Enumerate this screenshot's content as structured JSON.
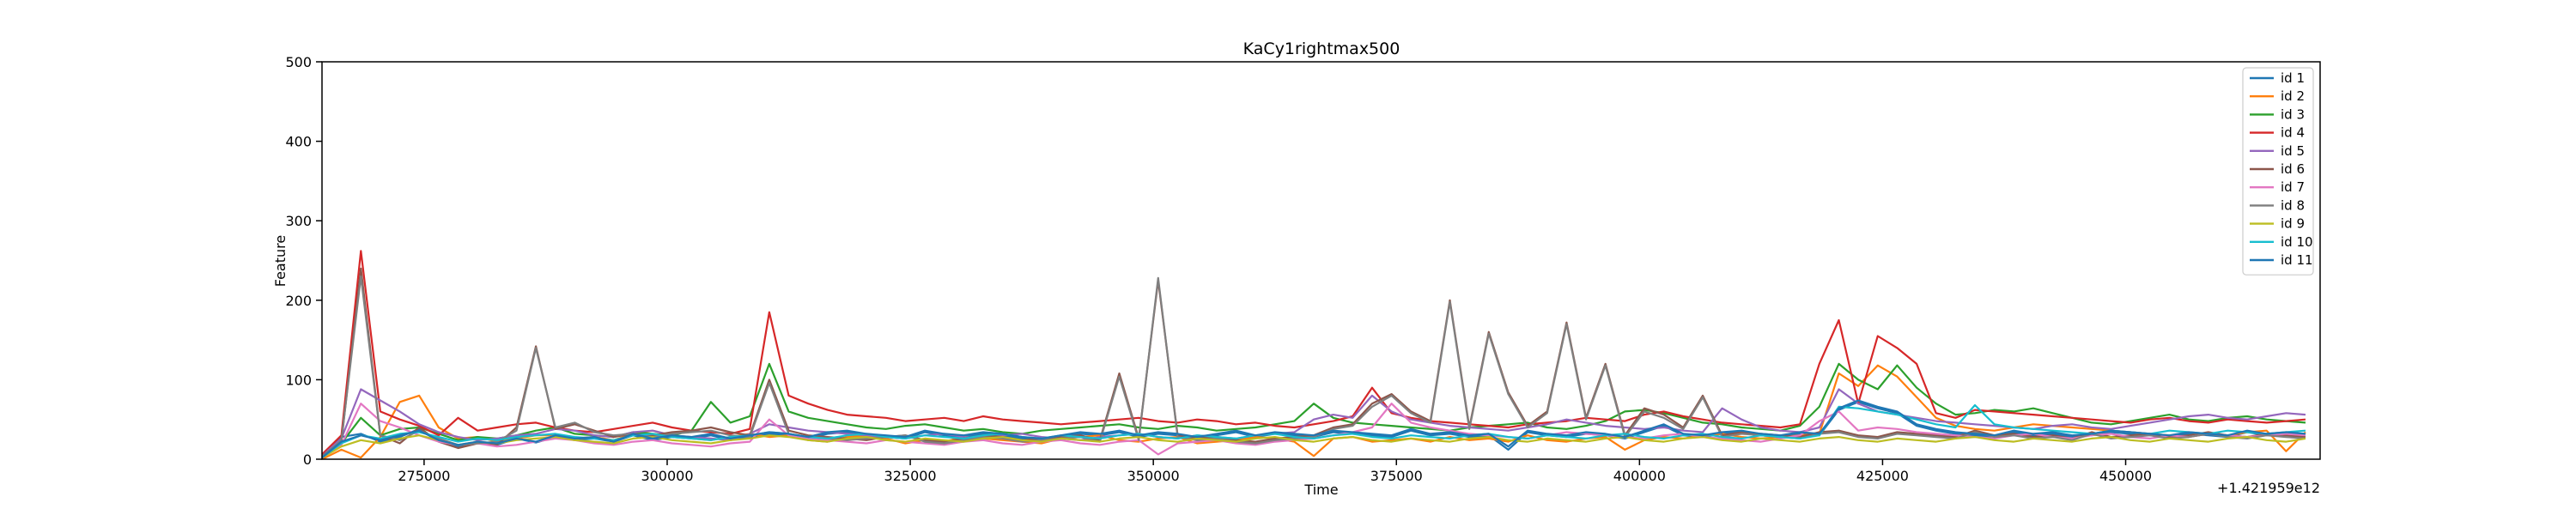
{
  "chart_data": {
    "type": "line",
    "title": "KaCy1rightmax500",
    "xlabel": "Time",
    "ylabel": "Feature",
    "x_offset_label": "+1.421959e12",
    "xlim": [
      264500,
      470000
    ],
    "ylim": [
      0,
      500
    ],
    "xticks": [
      275000,
      300000,
      325000,
      350000,
      375000,
      400000,
      425000,
      450000
    ],
    "xtick_labels": [
      "275000",
      "300000",
      "325000",
      "350000",
      "375000",
      "400000",
      "425000",
      "450000"
    ],
    "yticks": [
      0,
      100,
      200,
      300,
      400,
      500
    ],
    "ytick_labels": [
      "0",
      "100",
      "200",
      "300",
      "400",
      "500"
    ],
    "grid": false,
    "legend_position": "top-right",
    "x": [
      264500,
      266500,
      268500,
      270500,
      272500,
      274500,
      276500,
      278500,
      280500,
      282500,
      284500,
      286500,
      288500,
      290500,
      292500,
      294500,
      296500,
      298500,
      300500,
      302500,
      304500,
      306500,
      308500,
      310500,
      312500,
      314500,
      316500,
      318500,
      320500,
      322500,
      324500,
      326500,
      328500,
      330500,
      332500,
      334500,
      336500,
      338500,
      340500,
      342500,
      344500,
      346500,
      348500,
      350500,
      352500,
      354500,
      356500,
      358500,
      360500,
      362500,
      364500,
      366500,
      368500,
      370500,
      372500,
      374500,
      376500,
      378500,
      380500,
      382500,
      384500,
      386500,
      388500,
      390500,
      392500,
      394500,
      396500,
      398500,
      400500,
      402500,
      404500,
      406500,
      408500,
      410500,
      412500,
      414500,
      416500,
      418500,
      420500,
      422500,
      424500,
      426500,
      428500,
      430500,
      432500,
      434500,
      436500,
      438500,
      440500,
      442500,
      444500,
      446500,
      448500,
      450500,
      452500,
      454500,
      456500,
      458500,
      460500,
      462500,
      464500,
      466500,
      468500
    ],
    "series": [
      {
        "name": "id 1",
        "color": "#1f77b4",
        "values": [
          2,
          28,
          32,
          22,
          28,
          38,
          22,
          16,
          22,
          18,
          26,
          21,
          28,
          24,
          26,
          22,
          30,
          24,
          28,
          26,
          30,
          24,
          28,
          32,
          30,
          26,
          32,
          34,
          30,
          28,
          26,
          34,
          30,
          28,
          32,
          30,
          26,
          24,
          28,
          32,
          30,
          34,
          28,
          32,
          30,
          26,
          30,
          34,
          28,
          32,
          30,
          28,
          34,
          32,
          30,
          28,
          36,
          30,
          32,
          28,
          30,
          12,
          34,
          30,
          28,
          32,
          30,
          26,
          34,
          42,
          30,
          28,
          32,
          34,
          30,
          28,
          32,
          30,
          62,
          72,
          64,
          58,
          42,
          36,
          32,
          30,
          28,
          34,
          30,
          32,
          28,
          30,
          34,
          32,
          30,
          28,
          32,
          30,
          28,
          34,
          30,
          32,
          30
        ]
      },
      {
        "name": "id 2",
        "color": "#ff7f0e",
        "values": [
          0,
          12,
          2,
          28,
          72,
          80,
          40,
          26,
          28,
          22,
          26,
          30,
          30,
          26,
          28,
          24,
          32,
          36,
          30,
          26,
          24,
          28,
          32,
          28,
          30,
          24,
          22,
          28,
          30,
          26,
          20,
          24,
          22,
          28,
          26,
          24,
          22,
          20,
          26,
          28,
          30,
          24,
          22,
          26,
          28,
          20,
          22,
          24,
          28,
          26,
          22,
          4,
          26,
          28,
          22,
          24,
          26,
          22,
          28,
          24,
          26,
          22,
          30,
          24,
          22,
          26,
          28,
          12,
          24,
          28,
          26,
          30,
          32,
          28,
          26,
          28,
          30,
          32,
          108,
          92,
          118,
          104,
          78,
          52,
          42,
          38,
          36,
          40,
          44,
          42,
          40,
          38,
          36,
          34,
          32,
          30,
          28,
          32,
          30,
          34,
          36,
          10,
          34
        ]
      },
      {
        "name": "id 3",
        "color": "#2ca02c",
        "values": [
          4,
          20,
          52,
          30,
          38,
          40,
          32,
          24,
          28,
          26,
          30,
          36,
          40,
          32,
          30,
          28,
          34,
          32,
          30,
          36,
          72,
          46,
          54,
          120,
          60,
          52,
          48,
          44,
          40,
          38,
          42,
          44,
          40,
          36,
          38,
          34,
          32,
          36,
          38,
          40,
          42,
          44,
          40,
          38,
          42,
          40,
          36,
          38,
          40,
          44,
          48,
          70,
          52,
          46,
          44,
          42,
          40,
          38,
          36,
          40,
          42,
          44,
          46,
          40,
          38,
          42,
          48,
          60,
          62,
          58,
          52,
          46,
          44,
          40,
          38,
          36,
          42,
          66,
          120,
          100,
          88,
          118,
          90,
          70,
          56,
          58,
          62,
          60,
          64,
          58,
          52,
          46,
          44,
          48,
          52,
          56,
          50,
          48,
          52,
          54,
          50,
          48,
          46
        ]
      },
      {
        "name": "id 4",
        "color": "#d62728",
        "values": [
          6,
          30,
          262,
          60,
          50,
          42,
          30,
          52,
          36,
          40,
          44,
          46,
          40,
          36,
          34,
          38,
          42,
          46,
          40,
          36,
          34,
          32,
          38,
          185,
          80,
          70,
          62,
          56,
          54,
          52,
          48,
          50,
          52,
          48,
          54,
          50,
          48,
          46,
          44,
          46,
          48,
          50,
          52,
          48,
          46,
          50,
          48,
          44,
          46,
          42,
          40,
          44,
          48,
          54,
          90,
          58,
          52,
          48,
          46,
          44,
          42,
          40,
          44,
          46,
          48,
          52,
          50,
          48,
          56,
          60,
          54,
          50,
          46,
          44,
          42,
          40,
          44,
          120,
          175,
          70,
          155,
          140,
          120,
          58,
          52,
          62,
          60,
          58,
          56,
          54,
          52,
          50,
          48,
          46,
          50,
          52,
          48,
          46,
          50,
          48,
          46,
          48,
          50
        ]
      },
      {
        "name": "id 5",
        "color": "#9467bd",
        "values": [
          4,
          26,
          88,
          74,
          60,
          44,
          34,
          28,
          24,
          26,
          30,
          32,
          38,
          36,
          30,
          28,
          34,
          36,
          30,
          28,
          26,
          24,
          32,
          44,
          40,
          36,
          34,
          32,
          30,
          28,
          26,
          30,
          32,
          28,
          26,
          30,
          32,
          28,
          26,
          24,
          28,
          30,
          32,
          28,
          26,
          30,
          28,
          26,
          30,
          32,
          34,
          50,
          56,
          52,
          80,
          60,
          50,
          46,
          42,
          40,
          38,
          36,
          40,
          44,
          50,
          46,
          42,
          40,
          38,
          40,
          36,
          34,
          64,
          50,
          40,
          36,
          34,
          40,
          88,
          70,
          60,
          56,
          52,
          48,
          46,
          44,
          42,
          40,
          38,
          42,
          44,
          40,
          38,
          42,
          46,
          50,
          54,
          56,
          52,
          50,
          54,
          58,
          56
        ]
      },
      {
        "name": "id 6",
        "color": "#8c564b",
        "values": [
          4,
          22,
          240,
          30,
          20,
          40,
          22,
          14,
          20,
          18,
          40,
          142,
          38,
          44,
          36,
          28,
          32,
          30,
          34,
          36,
          40,
          34,
          30,
          100,
          36,
          30,
          28,
          26,
          24,
          28,
          30,
          24,
          22,
          26,
          30,
          28,
          24,
          26,
          28,
          30,
          24,
          108,
          26,
          225,
          30,
          26,
          28,
          24,
          22,
          26,
          28,
          30,
          40,
          44,
          70,
          82,
          60,
          48,
          200,
          40,
          160,
          84,
          42,
          60,
          172,
          52,
          120,
          30,
          64,
          56,
          40,
          80,
          30,
          34,
          32,
          30,
          28,
          34,
          36,
          30,
          28,
          34,
          32,
          30,
          28,
          36,
          30,
          32,
          28,
          30,
          26,
          34,
          28,
          30,
          32,
          28,
          30,
          34,
          30,
          28,
          32,
          30,
          28
        ]
      },
      {
        "name": "id 7",
        "color": "#e377c2",
        "values": [
          2,
          18,
          70,
          48,
          40,
          30,
          22,
          18,
          20,
          16,
          18,
          22,
          26,
          24,
          20,
          18,
          22,
          24,
          20,
          18,
          16,
          20,
          22,
          50,
          30,
          26,
          24,
          22,
          20,
          24,
          22,
          20,
          18,
          22,
          24,
          20,
          18,
          22,
          24,
          20,
          18,
          22,
          24,
          6,
          20,
          22,
          24,
          20,
          18,
          22,
          24,
          26,
          30,
          34,
          40,
          70,
          46,
          40,
          36,
          32,
          30,
          28,
          26,
          30,
          34,
          32,
          30,
          28,
          26,
          30,
          32,
          28,
          26,
          24,
          22,
          26,
          30,
          48,
          60,
          36,
          40,
          38,
          34,
          32,
          30,
          28,
          26,
          30,
          32,
          28,
          26,
          30,
          32,
          28,
          26,
          30,
          28,
          32,
          30,
          28,
          30,
          32,
          30
        ]
      },
      {
        "name": "id 8",
        "color": "#7f7f7f",
        "values": [
          3,
          24,
          230,
          30,
          24,
          36,
          26,
          18,
          20,
          22,
          36,
          140,
          40,
          46,
          34,
          30,
          32,
          28,
          32,
          34,
          36,
          30,
          28,
          96,
          32,
          28,
          26,
          24,
          26,
          28,
          30,
          22,
          20,
          24,
          28,
          26,
          22,
          24,
          26,
          28,
          22,
          104,
          24,
          228,
          28,
          24,
          26,
          22,
          20,
          24,
          26,
          28,
          38,
          42,
          66,
          80,
          58,
          46,
          198,
          38,
          158,
          82,
          40,
          58,
          170,
          50,
          118,
          28,
          60,
          52,
          38,
          78,
          28,
          32,
          30,
          28,
          26,
          32,
          34,
          28,
          26,
          32,
          30,
          28,
          26,
          34,
          28,
          30,
          26,
          28,
          24,
          32,
          26,
          28,
          30,
          26,
          28,
          32,
          28,
          26,
          30,
          28,
          26
        ]
      },
      {
        "name": "id 9",
        "color": "#bcbd22",
        "values": [
          2,
          16,
          24,
          20,
          26,
          30,
          24,
          18,
          22,
          20,
          24,
          26,
          28,
          24,
          22,
          20,
          26,
          28,
          24,
          22,
          20,
          24,
          26,
          30,
          28,
          24,
          22,
          26,
          28,
          24,
          22,
          26,
          24,
          22,
          26,
          28,
          24,
          22,
          26,
          24,
          22,
          26,
          28,
          24,
          22,
          26,
          24,
          22,
          26,
          28,
          24,
          22,
          26,
          28,
          24,
          22,
          26,
          24,
          22,
          26,
          28,
          24,
          22,
          26,
          24,
          22,
          26,
          28,
          24,
          22,
          26,
          28,
          24,
          22,
          26,
          24,
          22,
          26,
          28,
          24,
          22,
          26,
          24,
          22,
          26,
          28,
          24,
          22,
          26,
          24,
          22,
          26,
          28,
          24,
          22,
          26,
          24,
          22,
          26,
          28,
          24,
          22,
          26
        ]
      },
      {
        "name": "id 10",
        "color": "#17becf",
        "values": [
          2,
          20,
          30,
          26,
          32,
          34,
          28,
          22,
          26,
          24,
          28,
          30,
          32,
          28,
          26,
          24,
          30,
          32,
          28,
          26,
          24,
          28,
          30,
          34,
          32,
          28,
          26,
          30,
          32,
          28,
          26,
          30,
          28,
          26,
          30,
          32,
          28,
          26,
          30,
          28,
          26,
          30,
          32,
          28,
          26,
          30,
          28,
          26,
          30,
          32,
          28,
          26,
          30,
          32,
          28,
          26,
          30,
          28,
          26,
          30,
          32,
          28,
          26,
          30,
          28,
          26,
          30,
          32,
          28,
          26,
          30,
          32,
          28,
          26,
          30,
          28,
          26,
          30,
          66,
          64,
          60,
          56,
          50,
          44,
          40,
          68,
          44,
          40,
          38,
          36,
          34,
          32,
          36,
          34,
          32,
          36,
          34,
          32,
          36,
          34,
          32,
          34,
          36
        ]
      },
      {
        "name": "id 11",
        "color": "#1f77b4",
        "values": [
          2,
          22,
          30,
          24,
          30,
          36,
          24,
          18,
          22,
          20,
          26,
          22,
          30,
          26,
          28,
          22,
          32,
          26,
          30,
          28,
          32,
          26,
          30,
          34,
          32,
          28,
          34,
          36,
          32,
          30,
          28,
          36,
          32,
          30,
          34,
          32,
          28,
          26,
          30,
          34,
          32,
          36,
          30,
          34,
          32,
          28,
          32,
          36,
          30,
          34,
          32,
          30,
          36,
          34,
          32,
          30,
          38,
          32,
          34,
          30,
          32,
          16,
          36,
          32,
          30,
          34,
          32,
          28,
          36,
          44,
          32,
          30,
          34,
          36,
          32,
          30,
          34,
          32,
          64,
          74,
          66,
          60,
          44,
          38,
          34,
          32,
          30,
          36,
          32,
          34,
          30,
          32,
          36,
          34,
          32,
          30,
          34,
          32,
          30,
          36,
          32,
          34,
          32
        ]
      }
    ]
  }
}
